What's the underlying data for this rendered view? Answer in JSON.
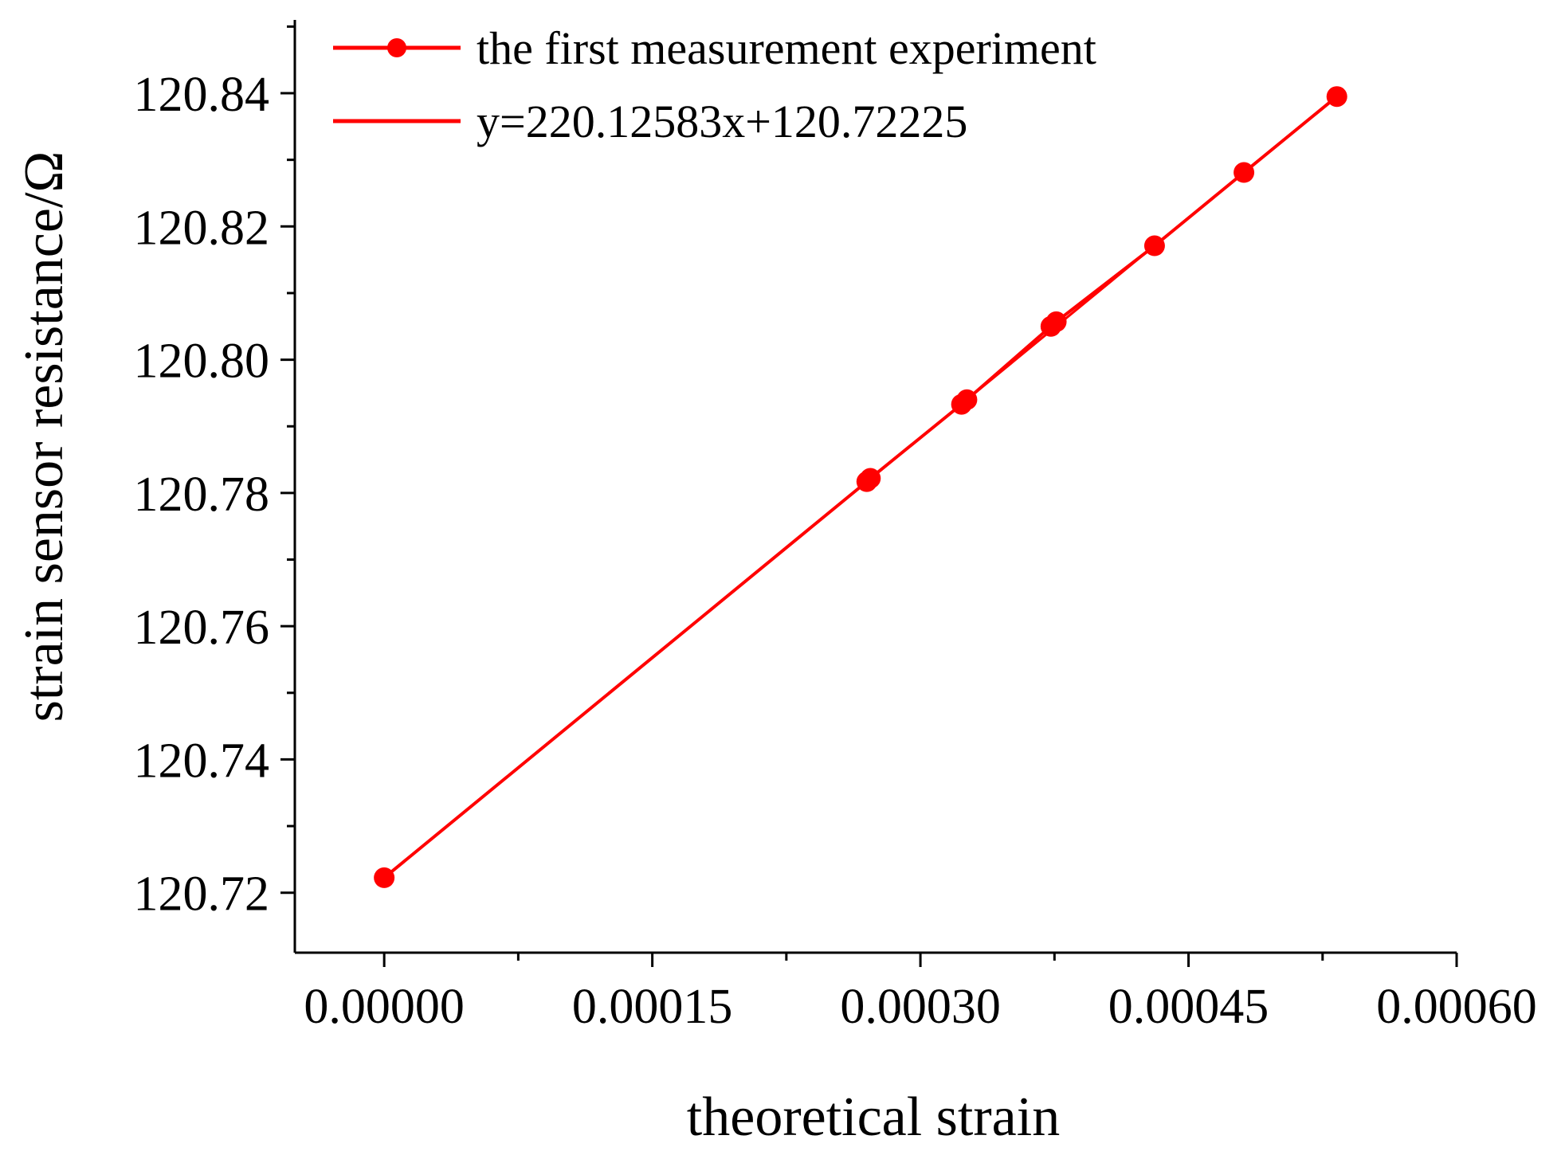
{
  "chart_data": {
    "type": "line",
    "xlabel": "theoretical strain",
    "ylabel": "strain sensor resistance/Ω",
    "xlim": [
      -5e-05,
      0.0006
    ],
    "ylim": [
      120.711,
      120.851
    ],
    "x_ticks": [
      0.0,
      0.00015,
      0.0003,
      0.00045,
      0.0006
    ],
    "x_tick_labels": [
      "0.00000",
      "0.00015",
      "0.00030",
      "0.00045",
      "0.00060"
    ],
    "y_ticks": [
      120.72,
      120.74,
      120.76,
      120.78,
      120.8,
      120.82,
      120.84
    ],
    "y_tick_labels": [
      "120.72",
      "120.74",
      "120.76",
      "120.78",
      "120.80",
      "120.82",
      "120.84"
    ],
    "grid": false,
    "legend_position": "top-left",
    "series": [
      {
        "name": "the first measurement experiment",
        "kind": "line-with-markers",
        "color": "#ff0000",
        "x": [
          0.0,
          0.00027,
          0.000272,
          0.000323,
          0.000326,
          0.000373,
          0.000376,
          0.000431,
          0.000481,
          0.000533
        ],
        "y": [
          120.72225,
          120.7817,
          120.7822,
          120.7933,
          120.794,
          120.805,
          120.8057,
          120.8171,
          120.8281,
          120.8395
        ]
      },
      {
        "name": "y=220.12583x+120.72225",
        "kind": "fit-line",
        "color": "#ff0000",
        "slope": 220.12583,
        "intercept": 120.72225,
        "x_range": [
          0.0,
          0.000533
        ]
      }
    ]
  }
}
